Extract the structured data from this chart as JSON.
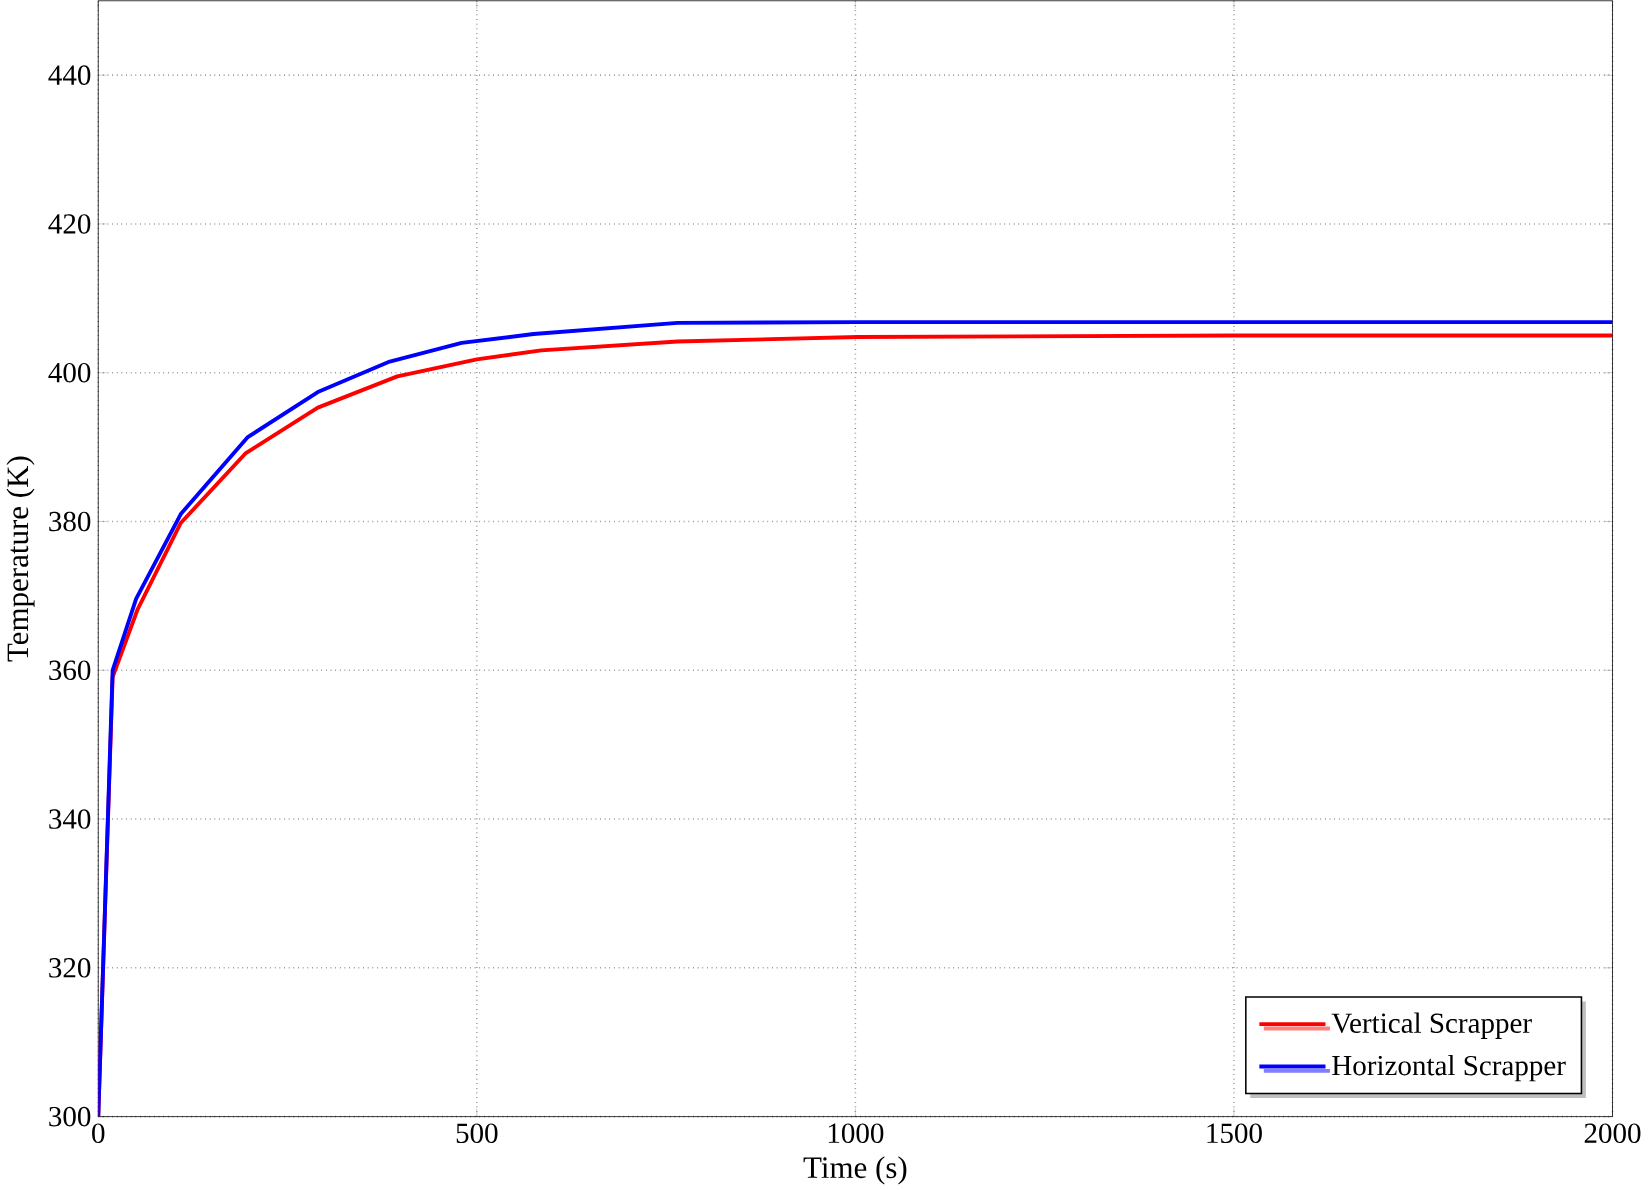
{
  "chart_data": {
    "type": "line",
    "xlabel": "Time (s)",
    "ylabel": "Temperature (K)",
    "xlim": [
      0,
      2000
    ],
    "ylim": [
      300,
      450
    ],
    "xticks": [
      0,
      500,
      1000,
      1500,
      2000
    ],
    "yticks": [
      300,
      320,
      340,
      360,
      380,
      400,
      420,
      440
    ],
    "grid": true,
    "legend": "bottom right",
    "line_style": "solid",
    "marker": "none",
    "series": [
      {
        "name": "Vertical Scrapper",
        "color": "#ff0000",
        "x": [
          0,
          19,
          52,
          109,
          195,
          290,
          395,
          500,
          585,
          765,
          1003,
          1500,
          2000
        ],
        "values": [
          300,
          359.1,
          368.2,
          379.8,
          389.2,
          395.3,
          399.5,
          401.8,
          403,
          404.2,
          404.8,
          405,
          405
        ]
      },
      {
        "name": "Horizontal Scrapper",
        "color": "#0000ff",
        "x": [
          0,
          19,
          50,
          109,
          197,
          290,
          385,
          480,
          575,
          765,
          1000,
          1500,
          2000
        ],
        "values": [
          300,
          360,
          369.6,
          381,
          391.3,
          397.4,
          401.5,
          404,
          405.2,
          406.7,
          406.8,
          406.8,
          406.8
        ]
      }
    ]
  }
}
